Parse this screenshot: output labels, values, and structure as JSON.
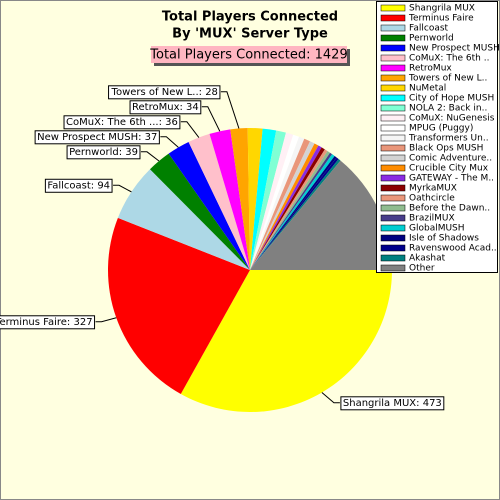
{
  "chart_data": {
    "type": "pie",
    "title": [
      "Total Players Connected",
      "By 'MUX' Server Type"
    ],
    "subtitle": "Total Players Connected: 1429",
    "categories": [
      "Shangrila MUX",
      "Terminus Faire",
      "Fallcoast",
      "Pernworld",
      "New Prospect MUSH",
      "CoMuX: The 6th ..",
      "RetroMux",
      "Towers of New L..",
      "NuMetal",
      "City of Hope MUSH",
      "NOLA 2: Back in..",
      "CoMuX: NuGenesis",
      "MPUG (Puggy)",
      "Transformers Un..",
      "Black Ops MUSH",
      "Comic Adventure..",
      "Crucible City Mux",
      "GATEWAY - The M..",
      "MyrkaMUX",
      "Oathcircle",
      "Before the Dawn..",
      "BrazilMUX",
      "GlobalMUSH",
      "Isle of Shadows",
      "Ravenswood Acad..",
      "Akashat",
      "Other"
    ],
    "values": [
      473,
      327,
      94,
      39,
      37,
      36,
      34,
      28,
      24,
      22,
      16,
      12,
      10,
      9,
      10,
      8,
      7,
      6,
      6,
      5,
      5,
      4,
      5,
      4,
      4,
      4,
      200
    ],
    "value_labels": [
      "Shangrila MUX: 473",
      "Terminus Faire: 327",
      "Fallcoast: 94",
      "Pernworld: 39",
      "New Prospect MUSH: 37",
      "CoMuX: The 6th ...: 36",
      "RetroMux: 34",
      "Towers of New L..: 28",
      null,
      null,
      null,
      null,
      null,
      null,
      null,
      null,
      null,
      null,
      null,
      null,
      null,
      null,
      null,
      null,
      null,
      null,
      null
    ],
    "colors": [
      "#ffff00",
      "#ff0000",
      "#add8e6",
      "#008000",
      "#0000ff",
      "#ffc0cb",
      "#ff00ff",
      "#ffa500",
      "#ffd700",
      "#00ffff",
      "#7fffd4",
      "#fff0f5",
      "#ffffff",
      "#f5f5f5",
      "#e9967a",
      "#d3d3d3",
      "#ff8c00",
      "#8a2be2",
      "#8b0000",
      "#e9967a",
      "#8fbc8f",
      "#483d8b",
      "#00ced1",
      "#000080",
      "#00008b",
      "#008080",
      "#808080"
    ],
    "legend": "top-right"
  }
}
